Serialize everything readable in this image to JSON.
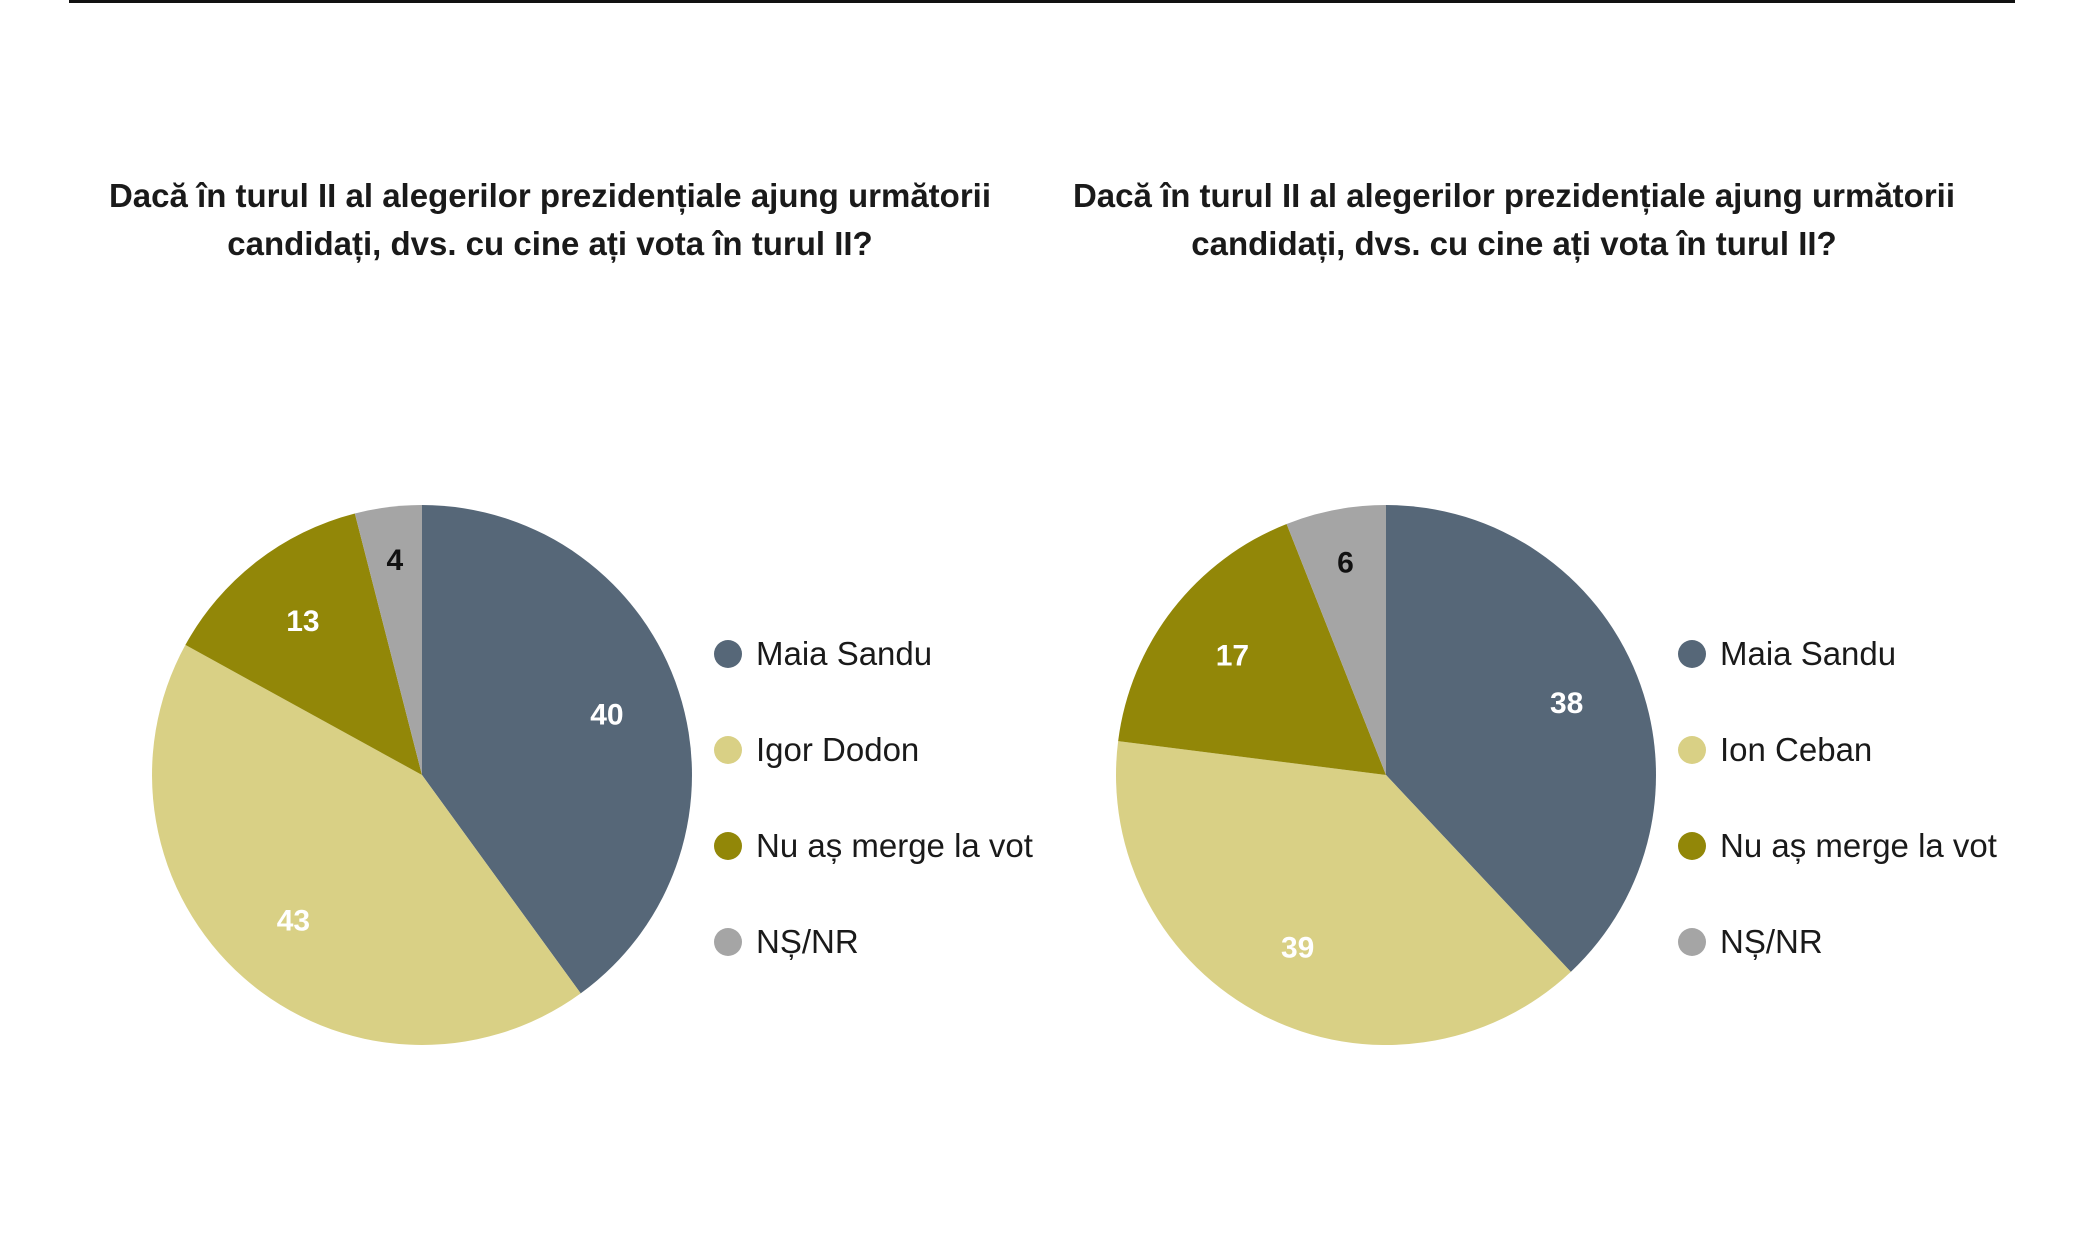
{
  "colors": {
    "maia_sandu": "#566778",
    "opponent": "#d9d085",
    "no_vote": "#928708",
    "ns_nr": "#a5a5a5"
  },
  "chart_data": [
    {
      "type": "pie",
      "title_lines": [
        "Dacă în turul II al alegerilor prezidențiale ajung următorii",
        "candidați, dvs. cu cine ați vota în turul II?"
      ],
      "slices": [
        {
          "name": "Maia Sandu",
          "value": 40,
          "color": "#566778",
          "label_color": "#ffffff"
        },
        {
          "name": "Igor Dodon",
          "value": 43,
          "color": "#d9d085",
          "label_color": "#ffffff"
        },
        {
          "name": "Nu aș merge la vot",
          "value": 13,
          "color": "#928708",
          "label_color": "#ffffff"
        },
        {
          "name": "NȘ/NR",
          "value": 4,
          "color": "#a5a5a5",
          "label_color": "#111111"
        }
      ],
      "legend_position": "right"
    },
    {
      "type": "pie",
      "title_lines": [
        "Dacă în turul II al alegerilor prezidențiale ajung următorii",
        "candidați, dvs. cu cine ați vota în turul II?"
      ],
      "slices": [
        {
          "name": "Maia Sandu",
          "value": 38,
          "color": "#566778",
          "label_color": "#ffffff"
        },
        {
          "name": "Ion Ceban",
          "value": 39,
          "color": "#d9d085",
          "label_color": "#ffffff"
        },
        {
          "name": "Nu aș merge la vot",
          "value": 17,
          "color": "#928708",
          "label_color": "#ffffff"
        },
        {
          "name": "NȘ/NR",
          "value": 6,
          "color": "#a5a5a5",
          "label_color": "#111111"
        }
      ],
      "legend_position": "right"
    }
  ]
}
